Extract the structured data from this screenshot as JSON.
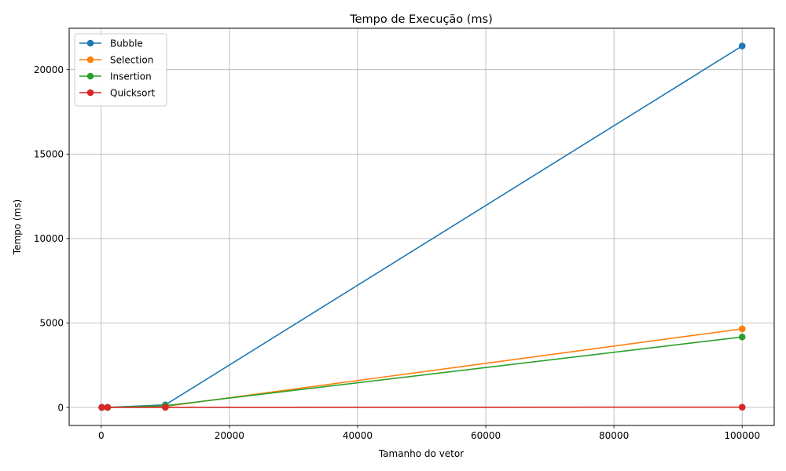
{
  "chart_data": {
    "type": "line",
    "title": "Tempo de Execução (ms)",
    "xlabel": "Tamanho do vetor",
    "ylabel": "Tempo (ms)",
    "x": [
      100,
      1000,
      10000,
      100000
    ],
    "xlim": [
      -5000,
      105000
    ],
    "ylim": [
      -1070,
      22450
    ],
    "xticks": [
      0,
      20000,
      40000,
      60000,
      80000,
      100000
    ],
    "xtick_labels": [
      "0",
      "20000",
      "40000",
      "60000",
      "80000",
      "100000"
    ],
    "yticks": [
      0,
      5000,
      10000,
      15000,
      20000
    ],
    "ytick_labels": [
      "0",
      "5000",
      "10000",
      "15000",
      "20000"
    ],
    "grid": true,
    "legend_position": "top-left",
    "series": [
      {
        "name": "Bubble",
        "color": "#1f77b4",
        "values": [
          0.05,
          2,
          150,
          21400
        ]
      },
      {
        "name": "Selection",
        "color": "#ff7f0e",
        "values": [
          0.03,
          1,
          60,
          4650
        ]
      },
      {
        "name": "Insertion",
        "color": "#2ca02c",
        "values": [
          0.02,
          1,
          100,
          4170
        ]
      },
      {
        "name": "Quicksort",
        "color": "#d62728",
        "values": [
          0.01,
          0.1,
          1,
          15
        ]
      }
    ]
  }
}
